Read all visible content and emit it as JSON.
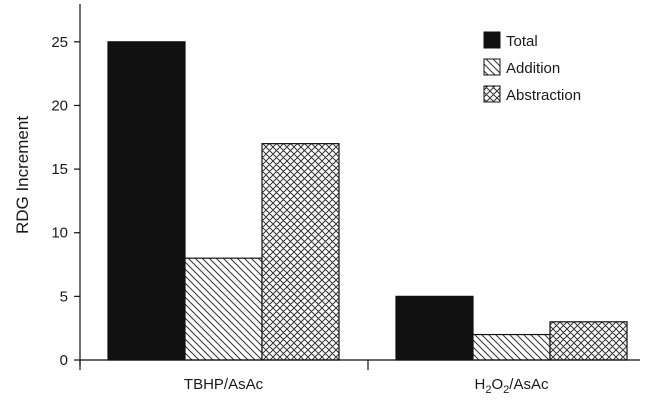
{
  "chart_data": {
    "type": "bar",
    "title": "",
    "xlabel": "",
    "ylabel": "RDG Increment",
    "ylim": [
      0,
      27.5
    ],
    "yticks": [
      0,
      5,
      10,
      15,
      20,
      25
    ],
    "grid": false,
    "legend_position": "top-right",
    "categories": [
      "TBHP/AsAc",
      "H2O2/AsAc"
    ],
    "category_labels": [
      {
        "parts": [
          {
            "text": "TBHP/AsAc",
            "sub": false
          }
        ]
      },
      {
        "parts": [
          {
            "text": "H",
            "sub": false
          },
          {
            "text": "2",
            "sub": true
          },
          {
            "text": "O",
            "sub": false
          },
          {
            "text": "2",
            "sub": true
          },
          {
            "text": "/AsAc",
            "sub": false
          }
        ]
      }
    ],
    "series": [
      {
        "name": "Total",
        "values": [
          25,
          5
        ],
        "fill": "solid",
        "color": "#111111"
      },
      {
        "name": "Addition",
        "values": [
          8,
          2
        ],
        "fill": "diagonal-hatch",
        "color": "#333333"
      },
      {
        "name": "Abstraction",
        "values": [
          17,
          3
        ],
        "fill": "cross-hatch",
        "color": "#333333"
      }
    ]
  }
}
